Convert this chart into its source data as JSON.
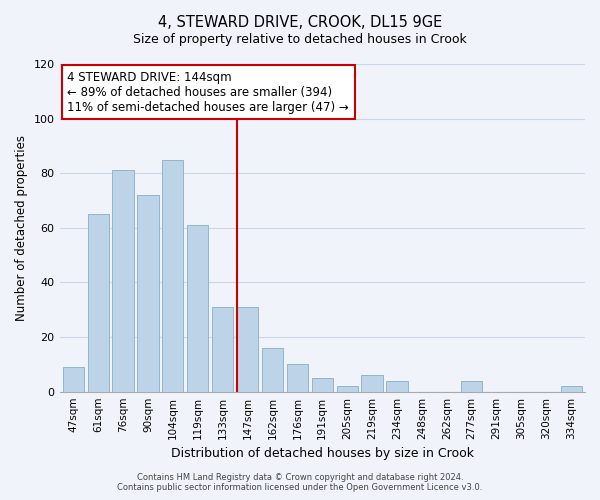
{
  "title": "4, STEWARD DRIVE, CROOK, DL15 9GE",
  "subtitle": "Size of property relative to detached houses in Crook",
  "xlabel": "Distribution of detached houses by size in Crook",
  "ylabel": "Number of detached properties",
  "bar_labels": [
    "47sqm",
    "61sqm",
    "76sqm",
    "90sqm",
    "104sqm",
    "119sqm",
    "133sqm",
    "147sqm",
    "162sqm",
    "176sqm",
    "191sqm",
    "205sqm",
    "219sqm",
    "234sqm",
    "248sqm",
    "262sqm",
    "277sqm",
    "291sqm",
    "305sqm",
    "320sqm",
    "334sqm"
  ],
  "bar_values": [
    9,
    65,
    81,
    72,
    85,
    61,
    31,
    31,
    16,
    10,
    5,
    2,
    6,
    4,
    0,
    0,
    4,
    0,
    0,
    0,
    2
  ],
  "bar_color": "#bdd3e8",
  "bar_edge_color": "#90b4d0",
  "vline_index": 7,
  "vline_color": "#cc0000",
  "ylim": [
    0,
    120
  ],
  "yticks": [
    0,
    20,
    40,
    60,
    80,
    100,
    120
  ],
  "annotation_title": "4 STEWARD DRIVE: 144sqm",
  "annotation_line1": "← 89% of detached houses are smaller (394)",
  "annotation_line2": "11% of semi-detached houses are larger (47) →",
  "annotation_box_edge": "#cc0000",
  "footer_line1": "Contains HM Land Registry data © Crown copyright and database right 2024.",
  "footer_line2": "Contains public sector information licensed under the Open Government Licence v3.0.",
  "bg_color": "#f0f4fa",
  "grid_color": "#c8d8ea"
}
